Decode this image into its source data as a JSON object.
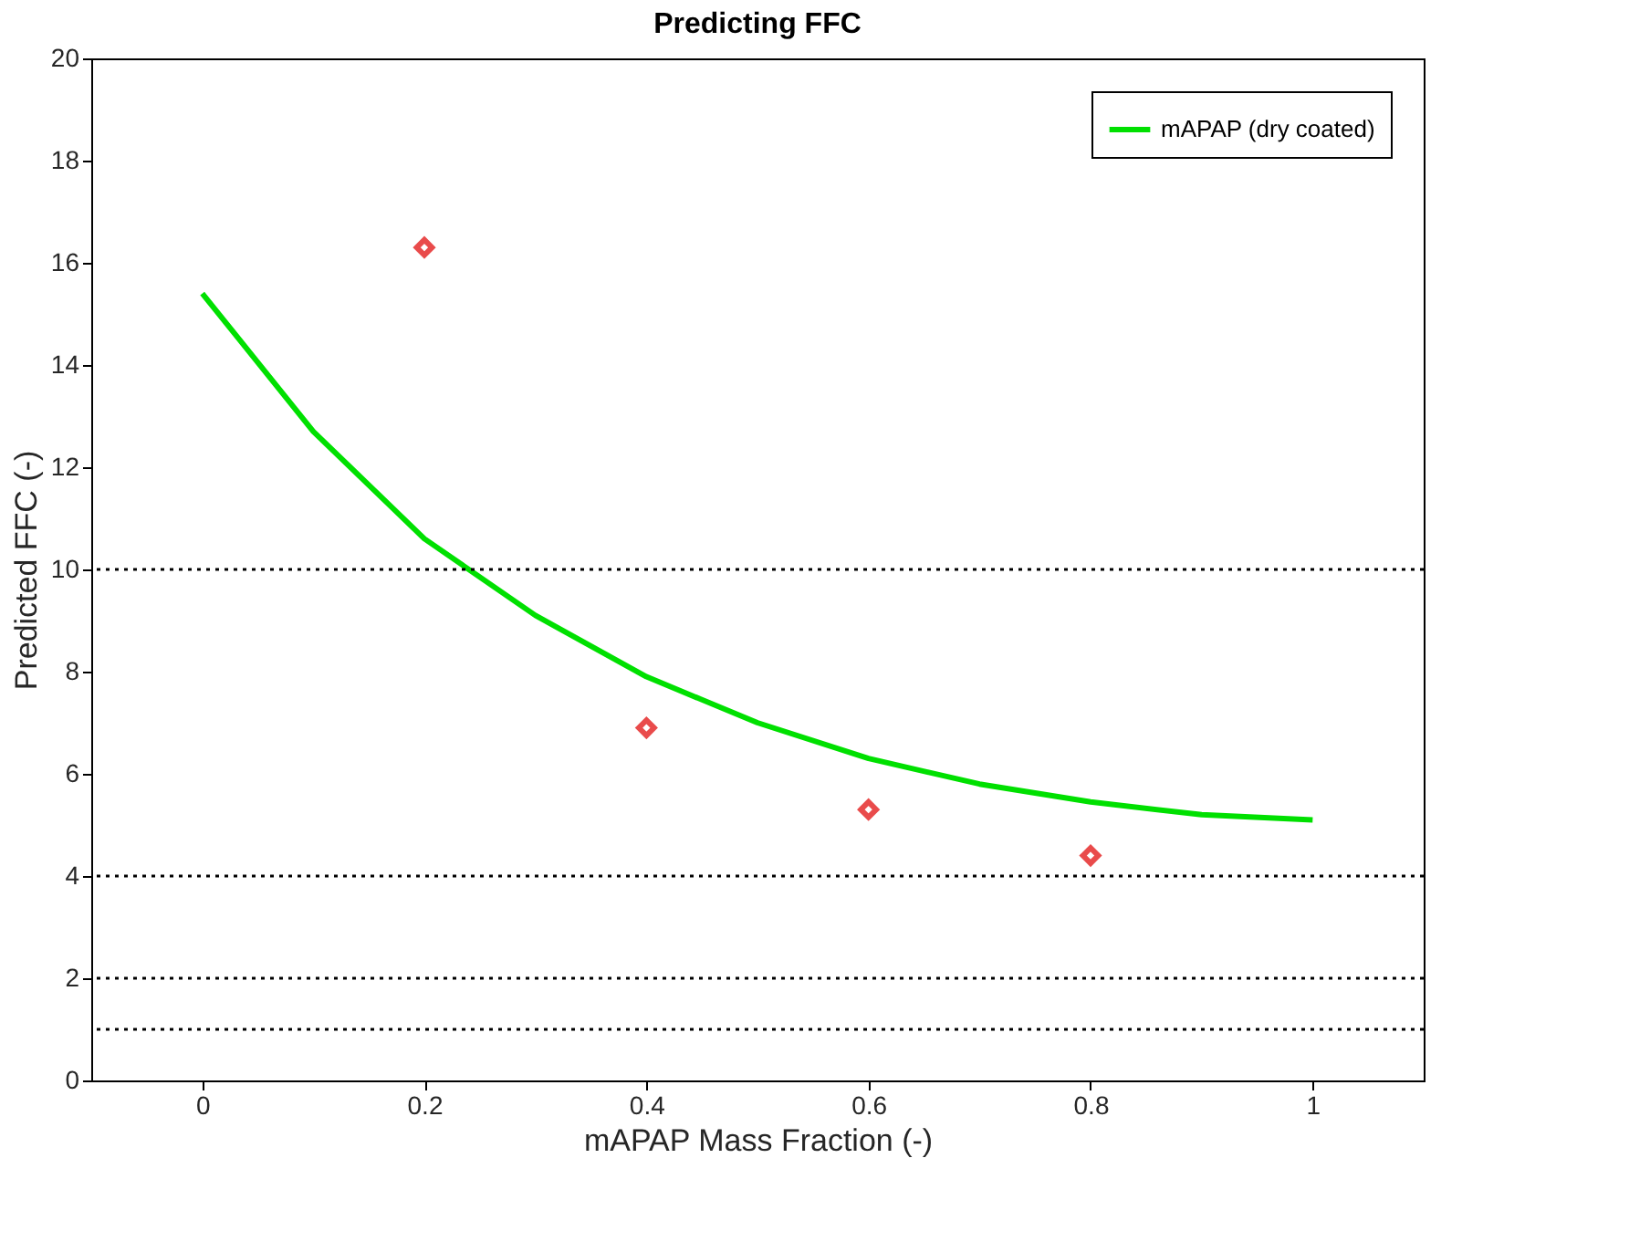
{
  "chart_data": {
    "type": "line",
    "title": "Predicting FFC",
    "xlabel": "mAPAP Mass Fraction (-)",
    "ylabel": "Predicted FFC (-)",
    "xlim": [
      -0.1,
      1.1
    ],
    "xticks": [
      0,
      0.2,
      0.4,
      0.6,
      0.8,
      1
    ],
    "ylim": [
      0,
      20
    ],
    "yticks": [
      0,
      2,
      4,
      6,
      8,
      10,
      12,
      14,
      16,
      18,
      20
    ],
    "series": [
      {
        "name": "mAPAP (dry coated)",
        "color": "#00e000",
        "marker": "none",
        "line_style": "solid",
        "x": [
          0,
          0.1,
          0.2,
          0.3,
          0.4,
          0.5,
          0.6,
          0.7,
          0.8,
          0.9,
          1.0
        ],
        "values": [
          15.4,
          12.7,
          10.6,
          9.1,
          7.9,
          7.0,
          6.3,
          5.8,
          5.45,
          5.2,
          5.1
        ]
      },
      {
        "type": "scatter",
        "color": "#e00000",
        "marker": "diamond",
        "x": [
          0.2,
          0.4,
          0.6,
          0.8
        ],
        "values": [
          16.3,
          6.9,
          5.3,
          4.4
        ]
      }
    ],
    "ref_lines": [
      {
        "axis": "y",
        "value": 10,
        "color": "#000000",
        "line_style": "dotted"
      },
      {
        "axis": "y",
        "value": 4,
        "color": "#000000",
        "line_style": "dotted"
      },
      {
        "axis": "y",
        "value": 2,
        "color": "#000000",
        "line_style": "dotted"
      },
      {
        "axis": "y",
        "value": 1,
        "color": "#000000",
        "line_style": "dotted"
      }
    ],
    "grid": false,
    "legend": "top right"
  }
}
